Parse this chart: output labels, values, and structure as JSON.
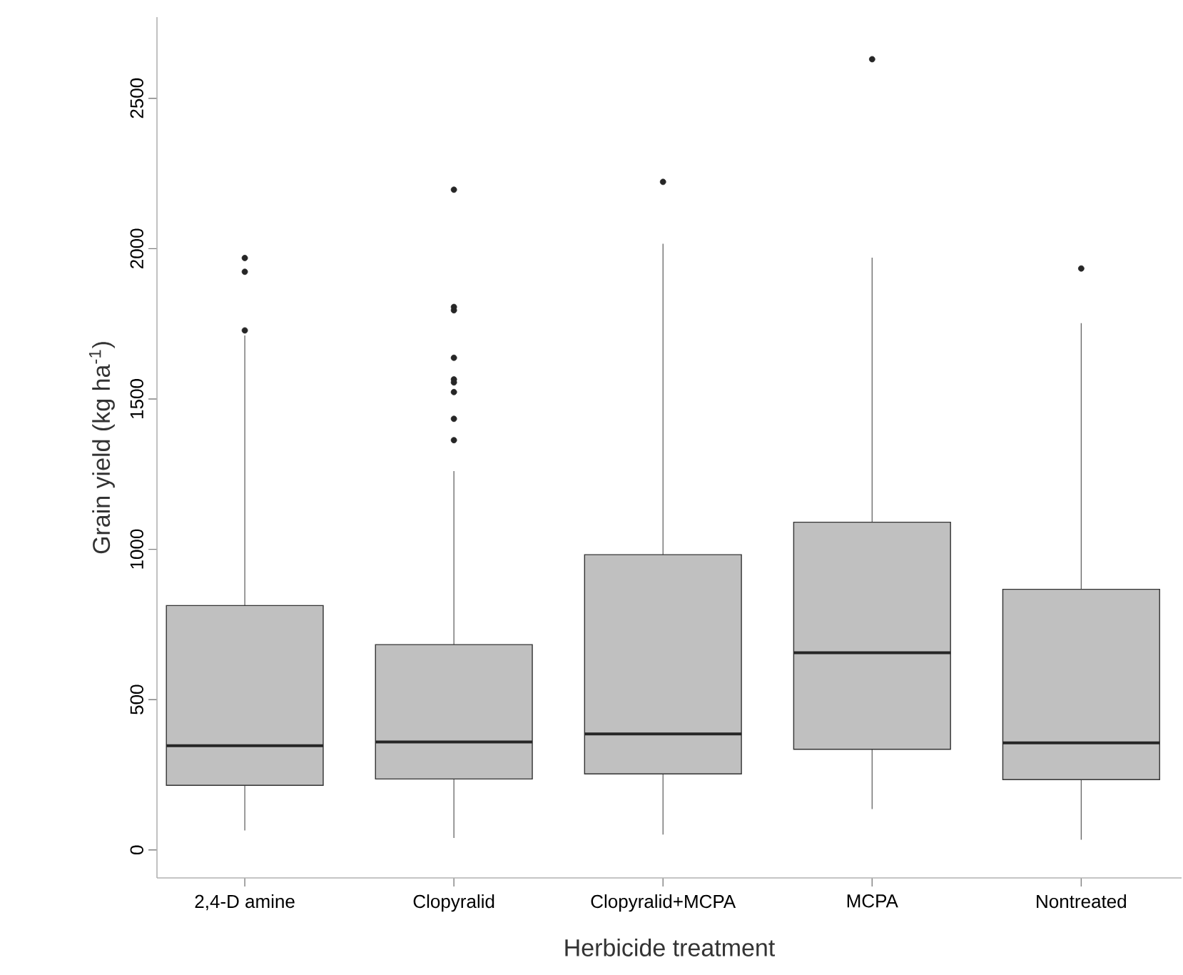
{
  "chart_data": {
    "type": "box",
    "categories": [
      "2,4-D amine",
      "Clopyralid",
      "Clopyralid+MCPA",
      "MCPA",
      "Nontreated"
    ],
    "xlabel": "Herbicide treatment",
    "ylabel": "Grain yield (kg ha$^{-1}$)",
    "ylim": [
      -93,
      2770
    ],
    "yticks": [
      0,
      500,
      1000,
      1500,
      2000,
      2500
    ],
    "grid": false,
    "series": [
      {
        "color": "#c0c0c0",
        "boxes": [
          {
            "low": 65,
            "q1": 215,
            "median": 347,
            "q3": 813,
            "high": 1711,
            "outliers": [
              1728,
              1923,
              1969
            ]
          },
          {
            "low": 40,
            "q1": 236,
            "median": 359,
            "q3": 683,
            "high": 1260,
            "outliers": [
              1363,
              1434,
              1523,
              1555,
              1565,
              1637,
              1795,
              1806,
              2196
            ]
          },
          {
            "low": 51,
            "q1": 253,
            "median": 386,
            "q3": 982,
            "high": 2016,
            "outliers": [
              2222
            ]
          },
          {
            "low": 136,
            "q1": 335,
            "median": 656,
            "q3": 1090,
            "high": 1970,
            "outliers": [
              2630
            ]
          },
          {
            "low": 34,
            "q1": 234,
            "median": 356,
            "q3": 867,
            "high": 1752,
            "outliers": [
              1934
            ]
          }
        ]
      }
    ]
  }
}
